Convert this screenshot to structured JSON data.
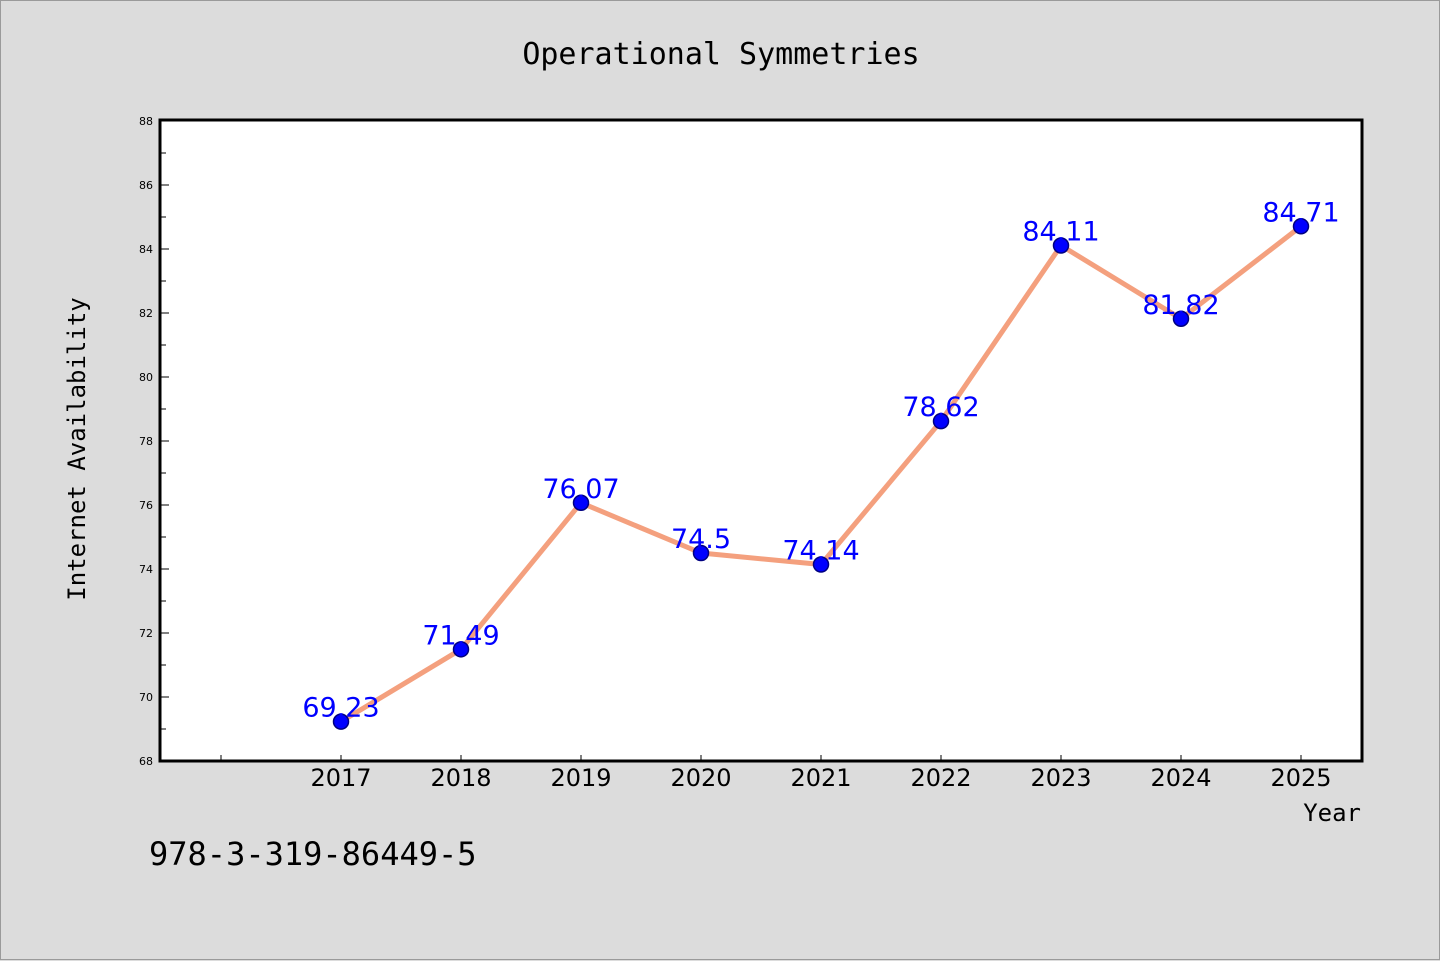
{
  "chart_data": {
    "type": "line",
    "title": "Operational Symmetries",
    "xlabel": "Year",
    "ylabel": "Internet Availability",
    "categories": [
      "2017",
      "2018",
      "2019",
      "2020",
      "2021",
      "2022",
      "2023",
      "2024",
      "2025"
    ],
    "series": [
      {
        "values": [
          69.23,
          71.49,
          76.07,
          74.5,
          74.14,
          78.62,
          84.11,
          81.82,
          84.71
        ],
        "labels": [
          "69.23",
          "71.49",
          "76.07",
          "74.5",
          "74.14",
          "78.62",
          "84.11",
          "81.82",
          "84.71"
        ]
      }
    ],
    "ylim": [
      68,
      88
    ],
    "yticks": [
      "68",
      "70",
      "72",
      "74",
      "76",
      "78",
      "80",
      "82",
      "84",
      "86",
      "88"
    ],
    "grid": false,
    "legend": "none",
    "colors": {
      "line": "#f4a07e",
      "marker": "#0000ff",
      "marker_edge": "#000080",
      "data_label": "#0000ff",
      "background": "#dcdcdc",
      "plot_background": "#ffffff"
    }
  },
  "footer": {
    "isbn": "978-3-319-86449-5"
  }
}
